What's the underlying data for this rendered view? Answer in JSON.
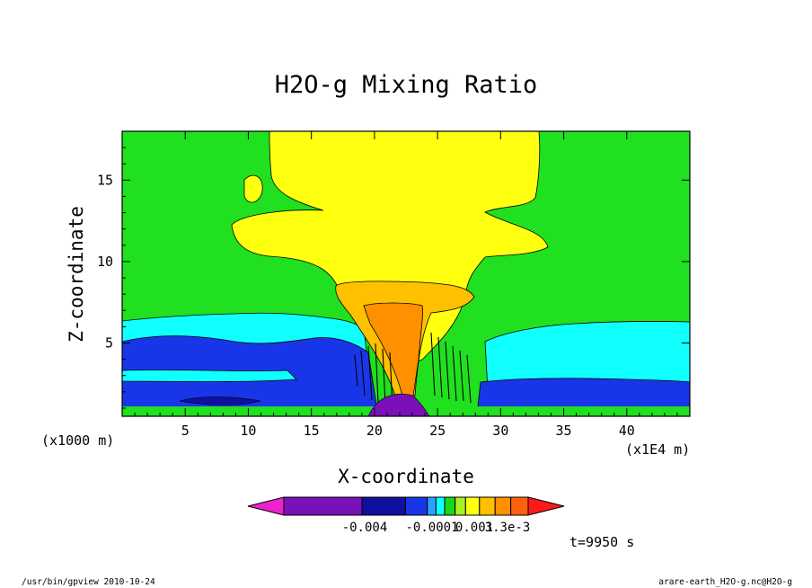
{
  "chart_data": {
    "type": "heatmap",
    "title": "H2O-g Mixing Ratio",
    "xlabel": "X-coordinate",
    "ylabel": "Z-coordinate",
    "x_unit": "(x1E4 m)",
    "y_unit": "(x1000 m)",
    "xlim": [
      0,
      45
    ],
    "ylim": [
      0.5,
      18
    ],
    "x_ticks": [
      5,
      10,
      15,
      20,
      25,
      30,
      35,
      40
    ],
    "y_ticks": [
      5,
      10,
      15
    ],
    "time_label": "t=9950 s",
    "colorbar": {
      "tick_labels": [
        "-0.004",
        "-0.0001",
        "0.001",
        "3.3e-3"
      ],
      "colors": [
        "#ee22cc",
        "#7a10b8",
        "#1010a0",
        "#1836e8",
        "#2aa0ff",
        "#10ffff",
        "#18d818",
        "#a8f028",
        "#ffff10",
        "#ffc000",
        "#ff9000",
        "#ff6010",
        "#ff1a1a"
      ]
    },
    "region_colors": {
      "background": "#20e020",
      "low_layer": "#10ffff",
      "moist_layer": "#1836e8",
      "deep_layer": "#1010a0",
      "anvil": "#ffff10",
      "core": "#ffc000",
      "updraft": "#ff9000"
    }
  },
  "footer": {
    "left": "/usr/bin/gpview  2010-10-24",
    "right": "arare-earth_H2O-g.nc@H2O-g"
  }
}
